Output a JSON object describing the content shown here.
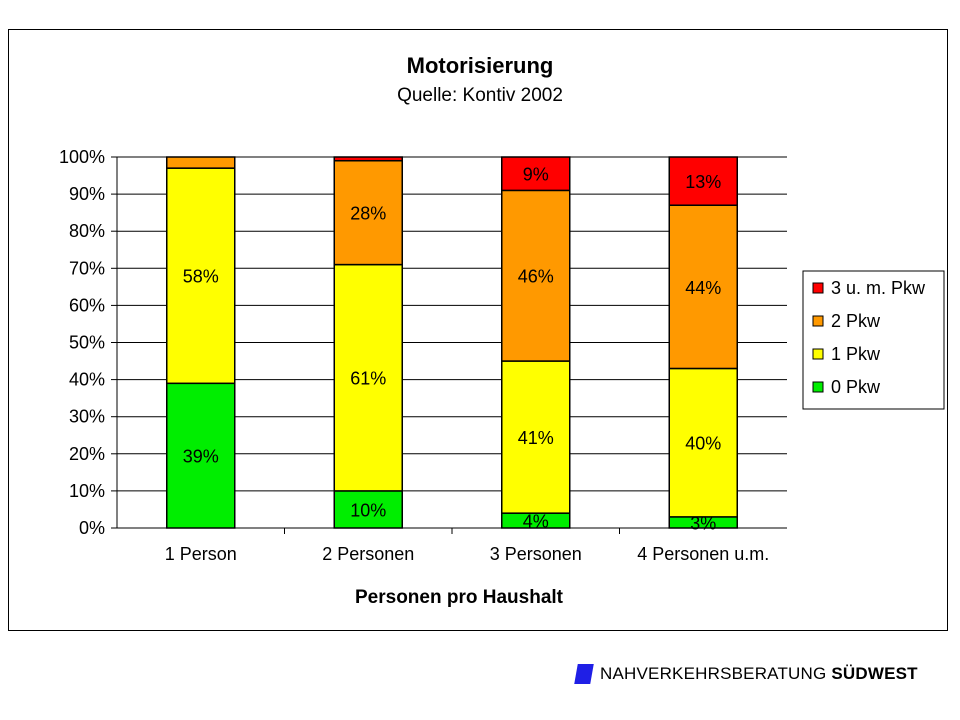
{
  "chart_data": {
    "type": "bar",
    "stacked": true,
    "percent_stacked": true,
    "title": "Motorisierung",
    "subtitle": "Quelle: Kontiv 2002",
    "xlabel": "Personen pro Haushalt",
    "ylabel": "",
    "ylim": [
      0,
      100
    ],
    "yticks": [
      "0%",
      "10%",
      "20%",
      "30%",
      "40%",
      "50%",
      "60%",
      "70%",
      "80%",
      "90%",
      "100%"
    ],
    "grid": true,
    "legend_position": "right",
    "categories": [
      "1 Person",
      "2 Personen",
      "3 Personen",
      "4 Personen u.m."
    ],
    "series": [
      {
        "name": "0 Pkw",
        "color": "#00ee00",
        "values": [
          39,
          10,
          4,
          3
        ],
        "labels": [
          "39%",
          "10%",
          "4%",
          "3%"
        ]
      },
      {
        "name": "1 Pkw",
        "color": "#ffff00",
        "values": [
          58,
          61,
          41,
          40
        ],
        "labels": [
          "58%",
          "61%",
          "41%",
          "40%"
        ]
      },
      {
        "name": "2 Pkw",
        "color": "#ff9900",
        "values": [
          3,
          28,
          46,
          44
        ],
        "labels": [
          "",
          "28%",
          "46%",
          "44%"
        ]
      },
      {
        "name": "3 u. m. Pkw",
        "color": "#ff0000",
        "values": [
          0,
          1,
          9,
          13
        ],
        "labels": [
          "",
          "",
          "9%",
          "13%"
        ]
      }
    ]
  },
  "footer": {
    "brand": "NAHVERKEHRSBERATUNG",
    "brand_bold": "SÜDWEST",
    "mark_color": "#1f1fe6"
  }
}
